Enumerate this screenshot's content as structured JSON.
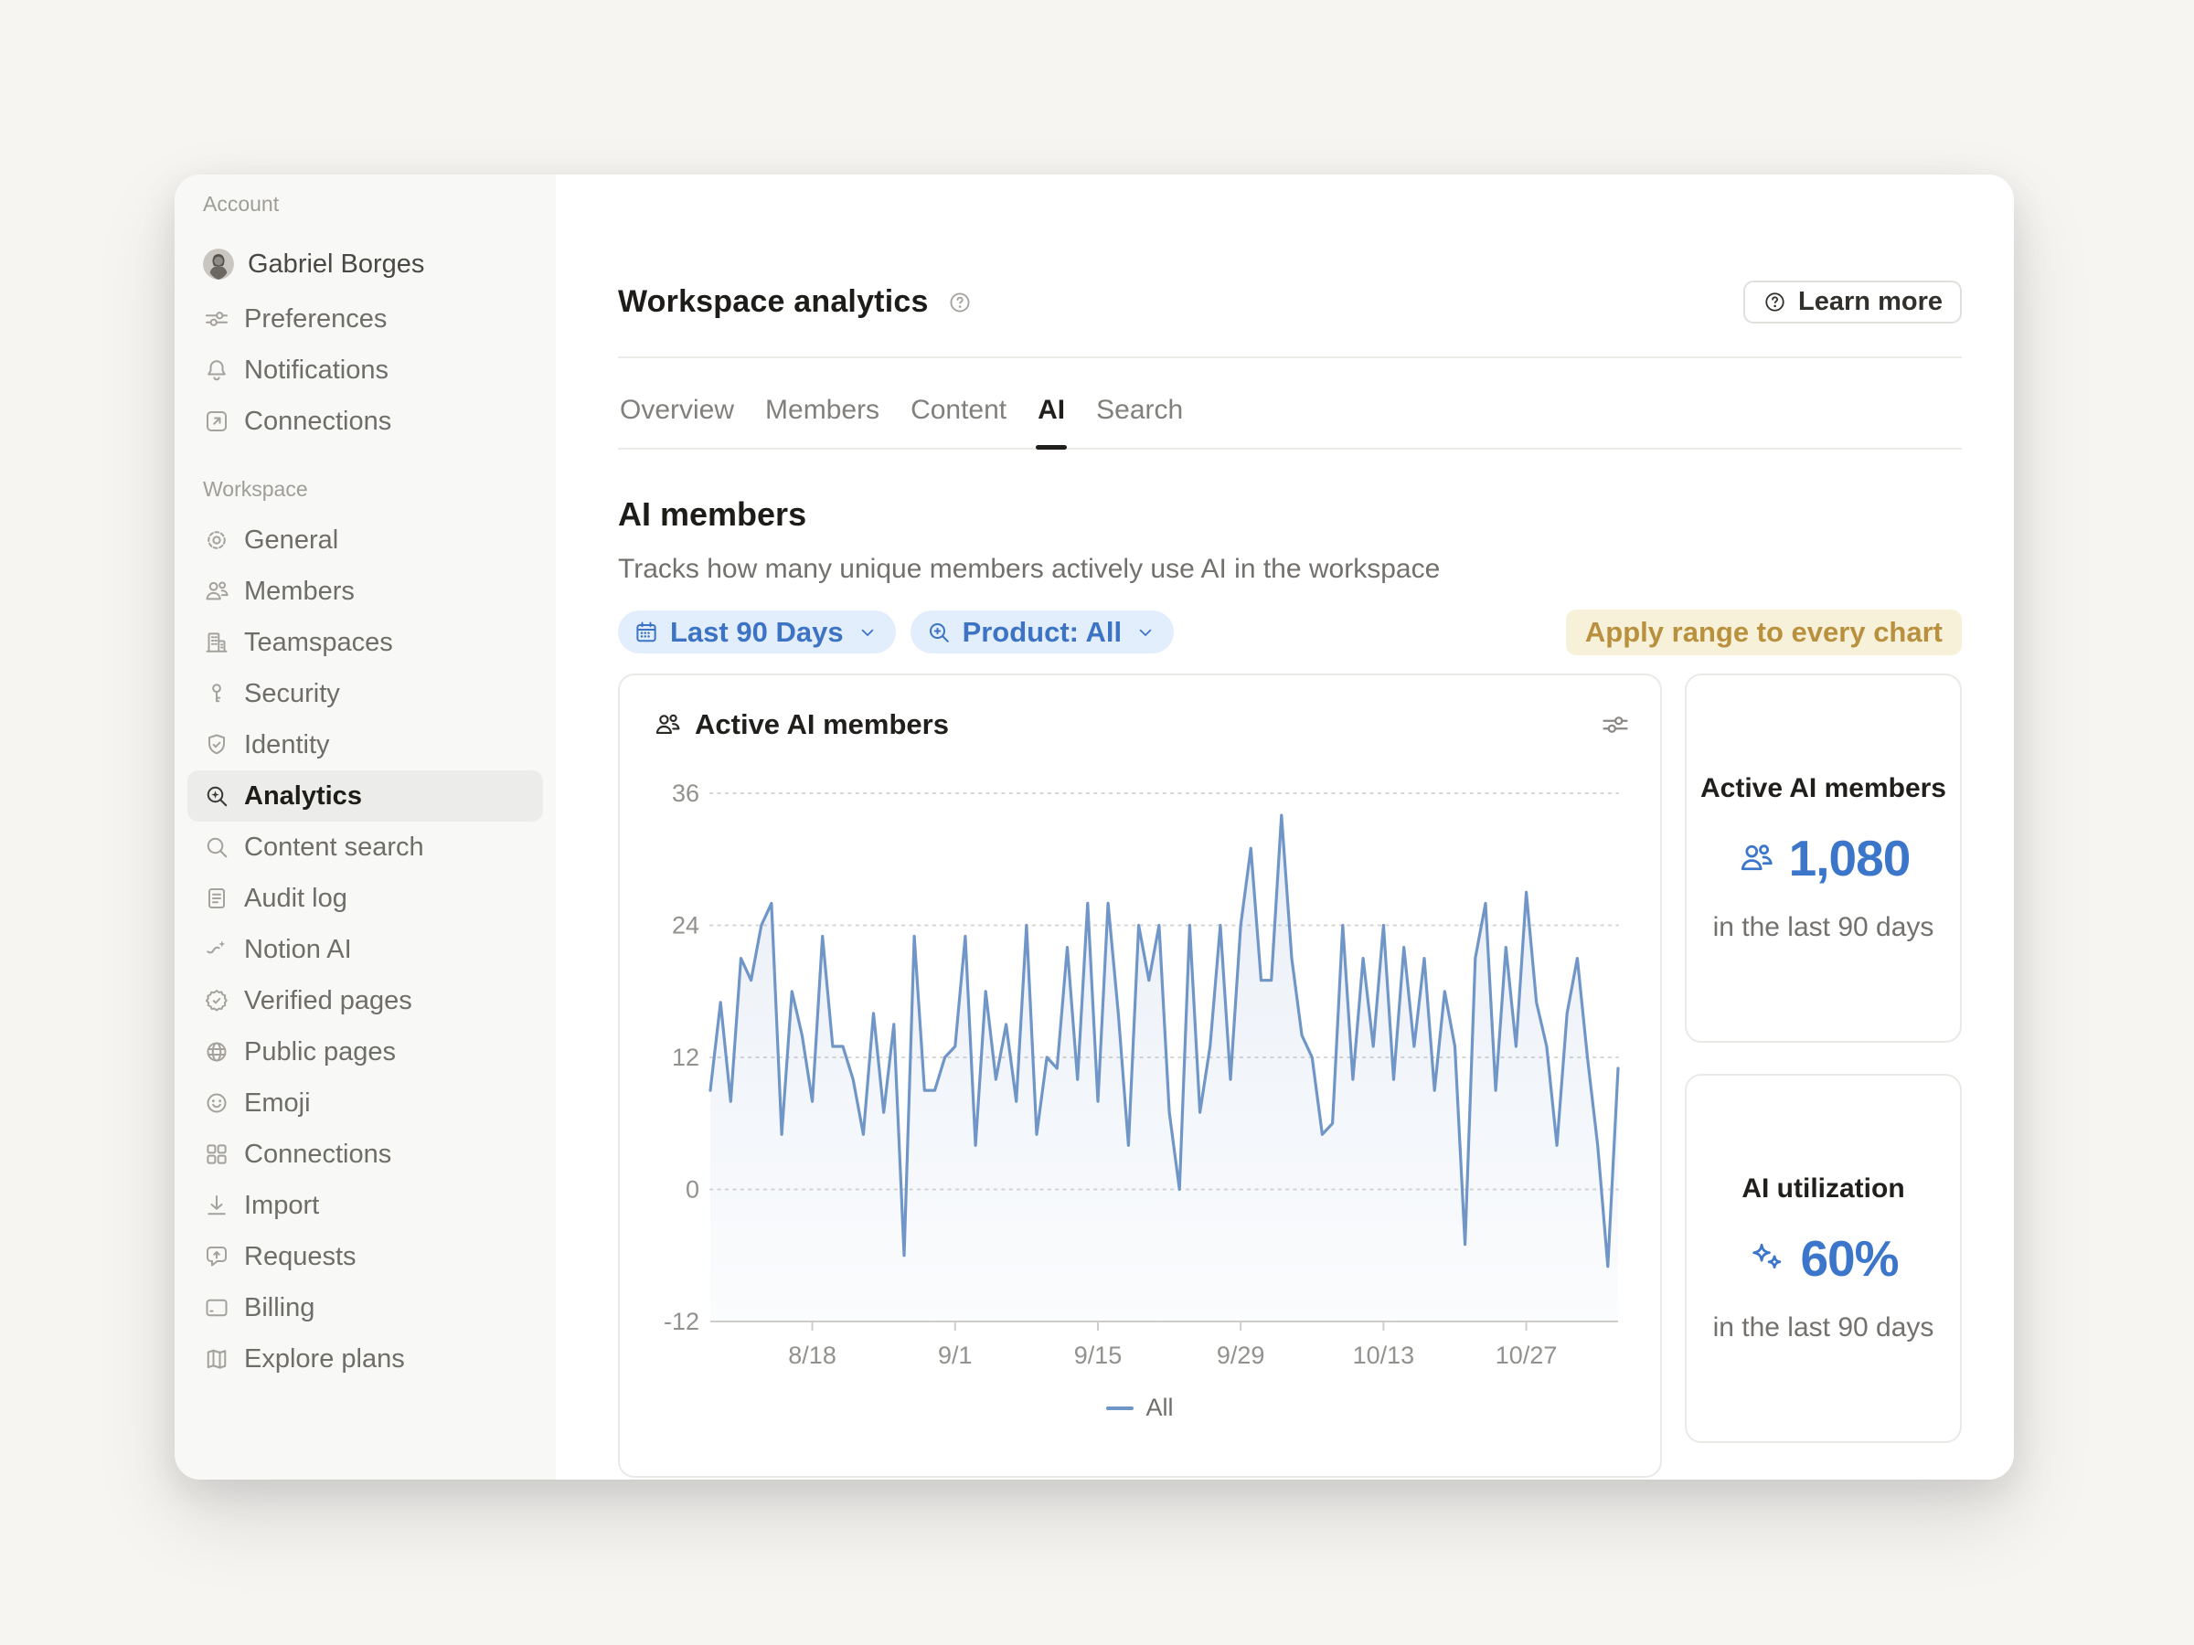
{
  "header": {
    "title": "Workspace analytics",
    "learn_more_label": "Learn more"
  },
  "sidebar": {
    "sections": [
      {
        "label": "Account",
        "items": [
          {
            "label": "Gabriel Borges",
            "icon": "avatar"
          },
          {
            "label": "Preferences",
            "icon": "sliders"
          },
          {
            "label": "Notifications",
            "icon": "bell"
          },
          {
            "label": "Connections",
            "icon": "external-link"
          }
        ]
      },
      {
        "label": "Workspace",
        "items": [
          {
            "label": "General",
            "icon": "gear"
          },
          {
            "label": "Members",
            "icon": "people"
          },
          {
            "label": "Teamspaces",
            "icon": "building"
          },
          {
            "label": "Security",
            "icon": "key"
          },
          {
            "label": "Identity",
            "icon": "shield-check"
          },
          {
            "label": "Analytics",
            "icon": "magnifier-star",
            "active": true
          },
          {
            "label": "Content search",
            "icon": "magnifier"
          },
          {
            "label": "Audit log",
            "icon": "audit-log"
          },
          {
            "label": "Notion AI",
            "icon": "ai-sparkle-face"
          },
          {
            "label": "Verified pages",
            "icon": "badge-check"
          },
          {
            "label": "Public pages",
            "icon": "globe"
          },
          {
            "label": "Emoji",
            "icon": "smiley"
          },
          {
            "label": "Connections",
            "icon": "grid"
          },
          {
            "label": "Import",
            "icon": "download"
          },
          {
            "label": "Requests",
            "icon": "chat-up"
          },
          {
            "label": "Billing",
            "icon": "credit-card"
          },
          {
            "label": "Explore plans",
            "icon": "map"
          }
        ]
      }
    ]
  },
  "tabs": [
    {
      "label": "Overview"
    },
    {
      "label": "Members"
    },
    {
      "label": "Content"
    },
    {
      "label": "AI",
      "active": true
    },
    {
      "label": "Search"
    }
  ],
  "section": {
    "title": "AI members",
    "subtitle": "Tracks how many unique members actively use AI in the workspace"
  },
  "filters": {
    "date_range": "Last 90 Days",
    "product": "Product: All",
    "apply_label": "Apply range to every chart"
  },
  "chart_card": {
    "title": "Active AI members"
  },
  "stats": [
    {
      "title": "Active AI members",
      "icon": "people",
      "value": "1,080",
      "caption": "in the last 90 days"
    },
    {
      "title": "AI utilization",
      "icon": "sparkles",
      "value": "60%",
      "caption": "in the last 90 days"
    }
  ],
  "colors": {
    "page_bg": "#f6f5f2",
    "sidebar_bg": "#f8f8f6",
    "selected_item_bg": "#ececea",
    "accent_blue": "#3c76ca",
    "chip_bg": "#e2eefb",
    "chip_text": "#3c73c4",
    "apply_bg": "#f8f1da",
    "apply_text": "#b8903e",
    "line_color": "#7096c8",
    "grid_color": "#d8d6d2",
    "axis_label": "#93918d"
  },
  "chart_data": {
    "type": "line",
    "title": "Active AI members",
    "xlabel": "",
    "ylabel": "",
    "ylim": [
      -12,
      36
    ],
    "y_ticks": [
      36,
      24,
      12,
      0,
      -12
    ],
    "x_tick_labels": [
      "8/18",
      "9/1",
      "9/15",
      "9/29",
      "10/13",
      "10/27"
    ],
    "x_tick_days": [
      10,
      24,
      38,
      52,
      66,
      80
    ],
    "grid": "dotted-horizontal",
    "legend": [
      "All"
    ],
    "legend_position": "bottom",
    "series": [
      {
        "name": "All",
        "values": [
          9,
          17,
          8,
          21,
          19,
          24,
          26,
          5,
          18,
          14,
          8,
          23,
          13,
          13,
          10,
          5,
          16,
          7,
          15,
          -6,
          23,
          9,
          9,
          12,
          13,
          23,
          4,
          18,
          10,
          15,
          8,
          24,
          5,
          12,
          11,
          22,
          10,
          26,
          8,
          26,
          16,
          4,
          24,
          19,
          24,
          7,
          0,
          24,
          7,
          13,
          24,
          10,
          24,
          31,
          19,
          19,
          34,
          21,
          14,
          12,
          5,
          6,
          24,
          10,
          21,
          13,
          24,
          10,
          22,
          13,
          21,
          9,
          18,
          13,
          -5,
          21,
          26,
          9,
          22,
          13,
          27,
          17,
          13,
          4,
          16,
          21,
          12,
          4,
          -7,
          11
        ]
      }
    ]
  }
}
